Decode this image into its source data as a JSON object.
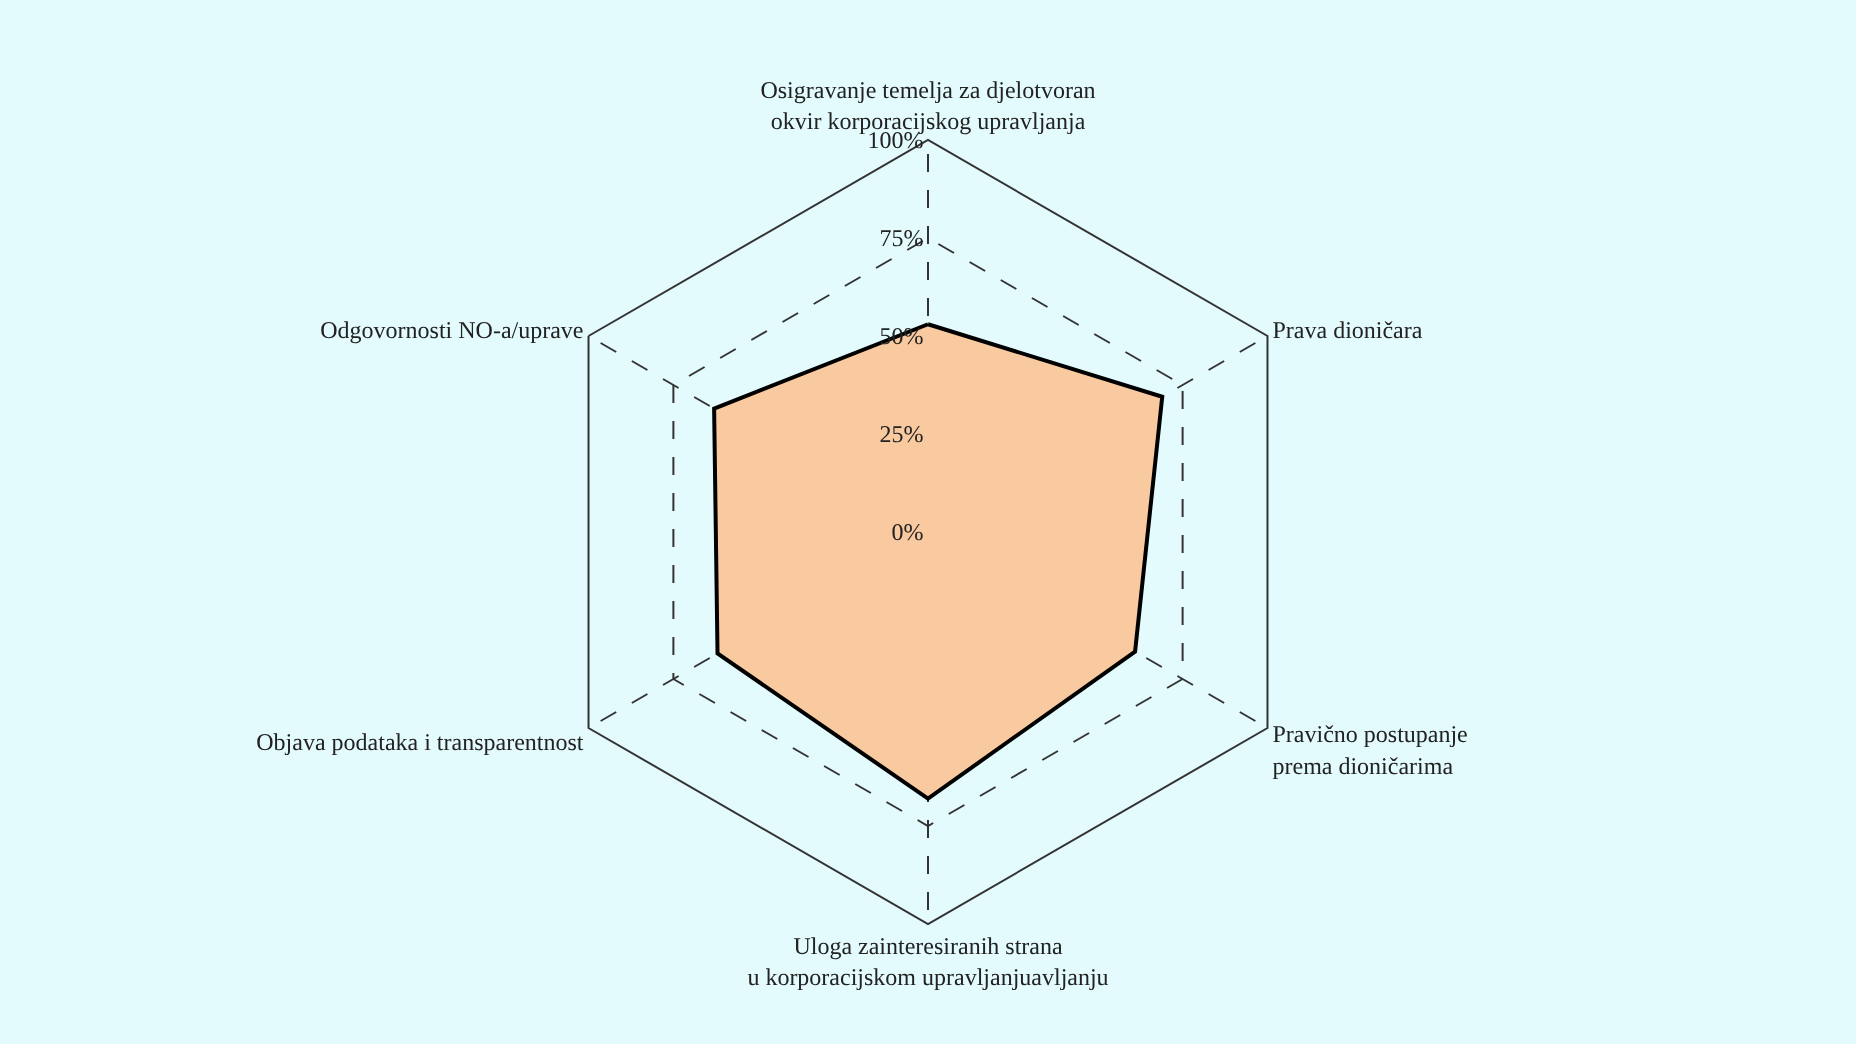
{
  "chart_data": {
    "type": "radar",
    "categories": [
      "Osigravanje temelja za djelotvoran\nokvir korporacijskog upravljanja",
      "Prava dioničara",
      "Pravično postupanje\nprema dioničarima",
      "Uloga zainteresiranih strana\nu korporacijskom upravljanjuavljanju",
      "Objava podataka i transparentnost",
      "Odgovornosti NO-a/uprave"
    ],
    "series": [
      {
        "color": "#f9c9a0",
        "values": [
          53,
          69,
          61,
          68,
          62,
          63
        ]
      }
    ],
    "ylim": [
      0,
      100
    ],
    "yticks": [
      {
        "value": 0,
        "label": "0%"
      },
      {
        "value": 25,
        "label": "25%"
      },
      {
        "value": 50,
        "label": "50%"
      },
      {
        "value": 75,
        "label": "75%"
      },
      {
        "value": 100,
        "label": "100%"
      }
    ],
    "grid": true,
    "line_style": "solid",
    "marker": "none"
  }
}
